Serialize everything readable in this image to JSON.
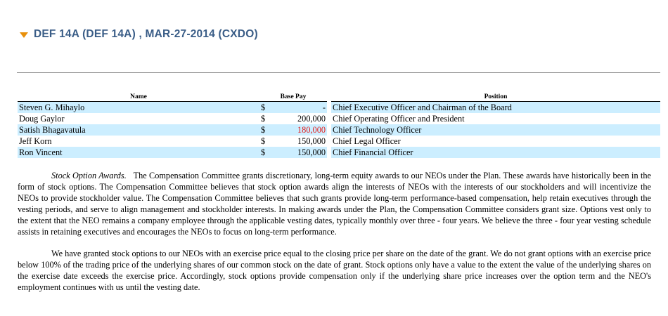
{
  "header": {
    "title": "DEF 14A (DEF 14A) , MAR-27-2014 (CXDO)",
    "accent_color": "#e8900c",
    "title_color": "#3a5d87"
  },
  "table": {
    "columns": {
      "name": "Name",
      "base_pay": "Base Pay",
      "position": "Position"
    },
    "shade_color": "#cceeff",
    "rows": [
      {
        "name": "Steven G. Mihaylo",
        "currency": "$",
        "amount": "-",
        "position": "Chief Executive Officer and Chairman of the Board"
      },
      {
        "name": "Doug Gaylor",
        "currency": "$",
        "amount": "200,000",
        "position": "Chief Operating Officer and President"
      },
      {
        "name": "Satish Bhagavatula",
        "currency": "$",
        "amount": "180,000",
        "position": "Chief Technology Officer"
      },
      {
        "name": "Jeff Korn",
        "currency": "$",
        "amount": "150,000",
        "position": "Chief Legal Officer"
      },
      {
        "name": "Ron Vincent",
        "currency": "$",
        "amount": "150,000",
        "position": "Chief Financial Officer"
      }
    ]
  },
  "paragraphs": {
    "p1_heading": "Stock Option Awards.",
    "p1_body": "The Compensation Committee grants discretionary, long-term equity awards to our NEOs under the Plan. These awards have historically been in the form of stock options. The Compensation Committee believes that stock option awards align the interests of NEOs with the interests of our stockholders and will incentivize the NEOs to provide stockholder value.  The Compensation Committee believes that such grants provide long-term performance-based compensation, help retain executives through the vesting periods, and serve to align management and stockholder interests. In making awards under the Plan, the Compensation Committee considers grant size. Options vest only to the extent that the NEO remains a company employee through the applicable vesting dates, typically monthly over three - four years. We believe the three - four year vesting schedule assists in retaining executives and encourages the NEOs to focus on long-term performance.",
    "p2_body": "We have granted stock options to our NEOs with an exercise price equal to the closing price per share on the date of the grant. We do not grant options with an exercise price below 100% of the trading price of the underlying shares of our common stock on the date of grant.  Stock options only have a value to the extent the value of the underlying shares on the exercise date exceeds the exercise price. Accordingly, stock options provide compensation only if the underlying share price increases over the option term and the NEO's employment continues with us until the vesting date."
  }
}
